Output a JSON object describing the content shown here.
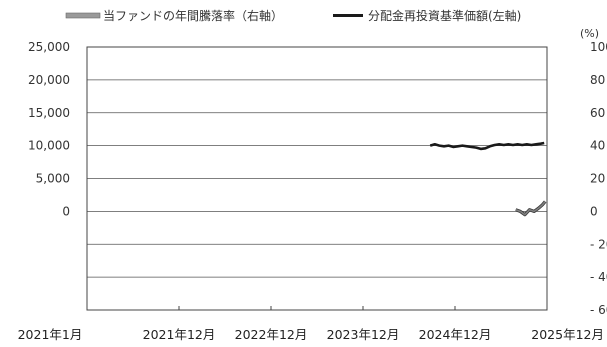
{
  "chart_data": {
    "type": "line",
    "legend": {
      "placement": "top",
      "items": [
        {
          "label": "当ファンドの年間騰落率（右軸）",
          "style": "thick-gray-line",
          "color": "#808080",
          "axis": "right"
        },
        {
          "label": "分配金再投資基準価額(左軸)",
          "style": "line",
          "color": "#1a1a1a",
          "axis": "left"
        }
      ]
    },
    "y_left": {
      "ticks": [
        25000,
        20000,
        15000,
        10000,
        5000,
        0
      ],
      "labels": [
        "25,000",
        "20,000",
        "15,000",
        "10,000",
        "5,000",
        "0"
      ],
      "ylim": [
        -15000,
        25000
      ]
    },
    "y_right": {
      "unit": "(%)",
      "ticks": [
        100,
        80,
        60,
        40,
        20,
        0,
        -20,
        -40,
        -60
      ],
      "labels": [
        "100",
        "80",
        "60",
        "40",
        "20",
        "0",
        "- 20",
        "- 40",
        "- 60"
      ],
      "ylim": [
        -60,
        100
      ]
    },
    "x": {
      "categories": [
        "2021年1月",
        "2021年12月",
        "2022年12月",
        "2023年12月",
        "2024年12月",
        "2025年12月"
      ]
    },
    "grid": {
      "horizontal": true,
      "vertical": false
    },
    "series": [
      {
        "name": "分配金再投資基準価額(左軸)",
        "axis": "left",
        "color": "#1a1a1a",
        "x": [
          3.73,
          3.78,
          3.83,
          3.88,
          3.93,
          3.98,
          4.03,
          4.08,
          4.13,
          4.18,
          4.23,
          4.28,
          4.33,
          4.38,
          4.43,
          4.48,
          4.53,
          4.58,
          4.63,
          4.68,
          4.73,
          4.78,
          4.83,
          4.88,
          4.93,
          4.97
        ],
        "values": [
          10000,
          10200,
          10000,
          9900,
          10000,
          9800,
          9900,
          10000,
          9900,
          9800,
          9700,
          9500,
          9600,
          9900,
          10100,
          10200,
          10100,
          10200,
          10100,
          10200,
          10100,
          10200,
          10100,
          10200,
          10300,
          10400
        ]
      },
      {
        "name": "当ファンドの年間騰落率（右軸）",
        "axis": "right",
        "color": "#808080",
        "x": [
          4.66,
          4.71,
          4.76,
          4.81,
          4.86,
          4.91,
          4.95,
          4.98
        ],
        "values": [
          1,
          0,
          -2,
          1,
          0,
          2,
          4,
          6
        ]
      }
    ]
  }
}
